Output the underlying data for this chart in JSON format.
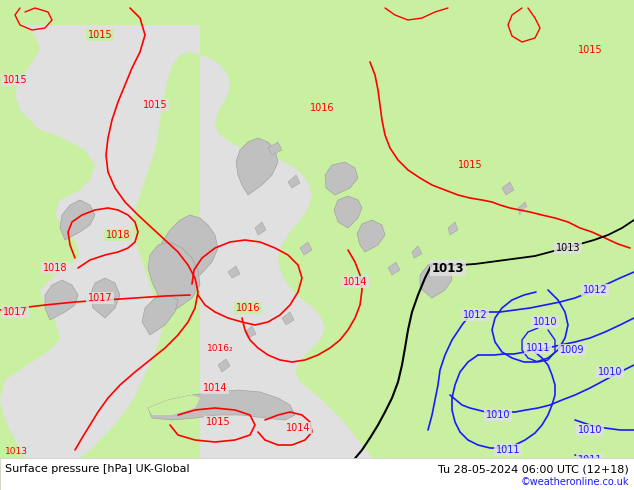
{
  "title_left": "Surface pressure [hPa] UK-Global",
  "title_right": "Tu 28-05-2024 06:00 UTC (12+18)",
  "copyright": "©weatheronline.co.uk",
  "bg_color": "#e0e0e0",
  "land_green": "#c8f0a0",
  "land_gray": "#c0c0c0",
  "sea_color": "#e0e0e0",
  "bottom_bar_color": "#ffffff",
  "red": "#ff0000",
  "blue": "#1a1aff",
  "black": "#000000",
  "font_color_copyright": "#1a1aff",
  "fig_w": 6.34,
  "fig_h": 4.9,
  "dpi": 100
}
